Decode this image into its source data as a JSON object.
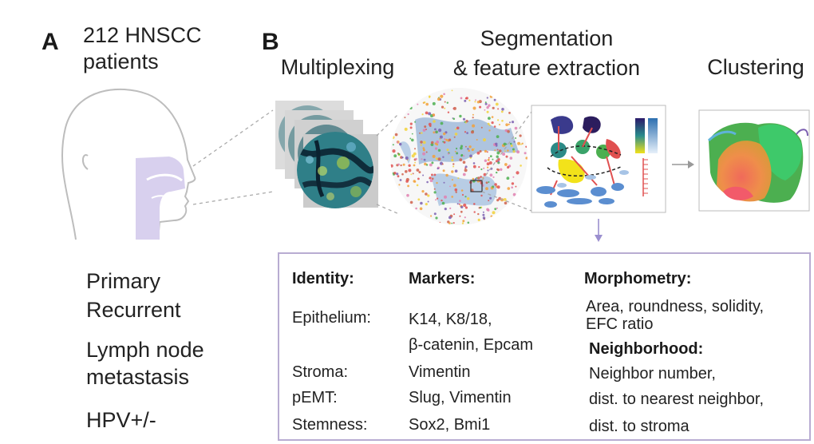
{
  "panel_a": {
    "letter": "A",
    "cohort_line1": "212 HNSCC",
    "cohort_line2": "patients",
    "sample_types": [
      "Primary",
      "Recurrent",
      "Lymph node",
      "metastasis"
    ],
    "hpv": "HPV+/-"
  },
  "panel_b": {
    "letter": "B",
    "steps": {
      "multiplexing": "Multiplexing",
      "segmentation_line1": "Segmentation",
      "segmentation_line2": "& feature extraction",
      "clustering": "Clustering"
    }
  },
  "table": {
    "headers": {
      "identity": "Identity:",
      "markers": "Markers:",
      "morphometry": "Morphometry:"
    },
    "rows": [
      {
        "identity": "Epithelium:",
        "markers_line1": "K14, K8/18,",
        "markers_line2": "β-catenin, Epcam"
      },
      {
        "identity": "Stroma:",
        "markers": "Vimentin"
      },
      {
        "identity": "pEMT:",
        "markers": "Slug, Vimentin"
      },
      {
        "identity": "Stemness:",
        "markers": "Sox2, Bmi1"
      }
    ],
    "morphometry_line1": "Area, roundness, solidity,",
    "morphometry_line2": "EFC ratio",
    "neighborhood_header": "Neighborhood:",
    "neighborhood_items": [
      "Neighbor number,",
      "dist. to nearest neighbor,",
      "dist. to stroma"
    ]
  }
}
